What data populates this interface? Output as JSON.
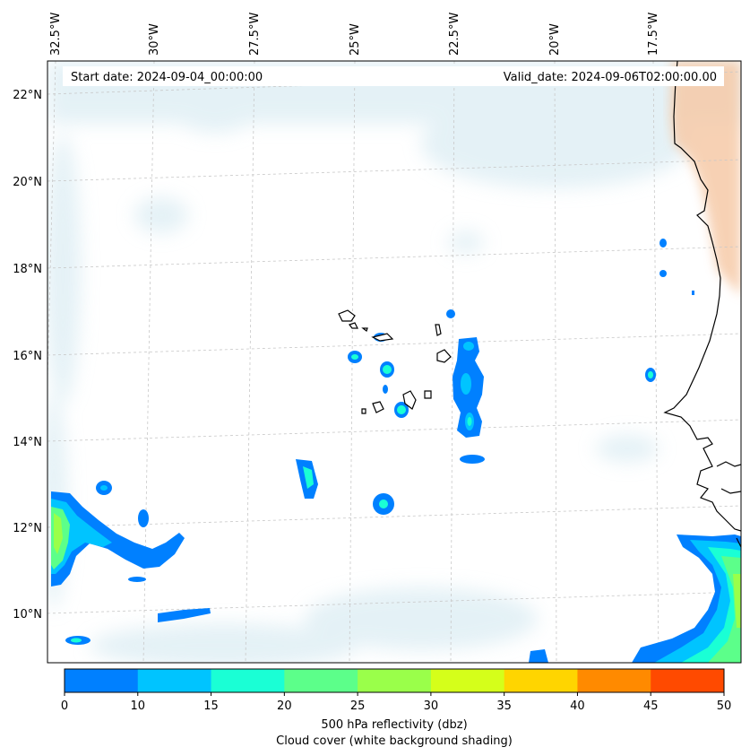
{
  "header": {
    "start_date": "Start date: 2024-09-04_00:00:00",
    "valid_date": "Valid_date: 2024-09-06T02:00:00.00"
  },
  "axes": {
    "lon_labels": [
      "32.5°W",
      "30°W",
      "27.5°W",
      "25°W",
      "22.5°W",
      "20°W",
      "17.5°W"
    ],
    "lat_labels": [
      "22°N",
      "20°N",
      "18°N",
      "16°N",
      "14°N",
      "12°N",
      "10°N"
    ]
  },
  "colorbar": {
    "ticks": [
      "0",
      "10",
      "15",
      "20",
      "25",
      "30",
      "35",
      "40",
      "45",
      "50"
    ],
    "colors": [
      "#0080ff",
      "#00c4ff",
      "#1affd5",
      "#5cff8a",
      "#9aff4a",
      "#d5ff1a",
      "#ffd500",
      "#ff8a00",
      "#ff4a00"
    ],
    "label_line1": "500 hPa reflectivity (dbz)",
    "label_line2": "Cloud cover (white background shading)"
  },
  "colors": {
    "cloud": "#d6ebf2",
    "land_orange": "#f7d9c2",
    "coastline": "#000000"
  }
}
